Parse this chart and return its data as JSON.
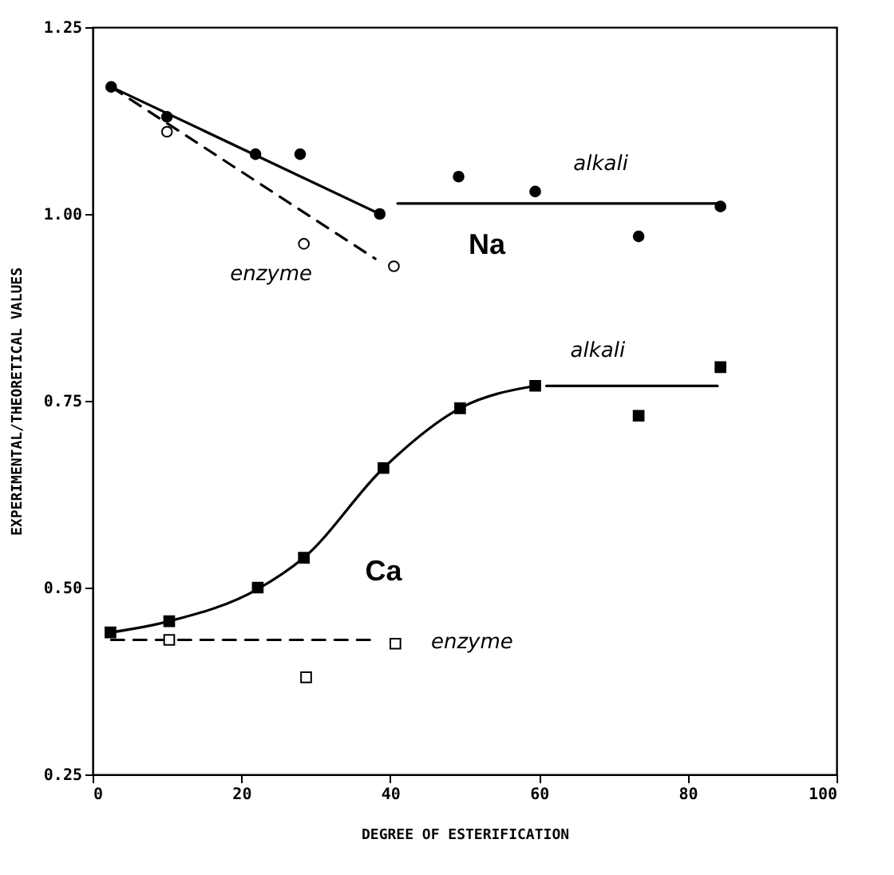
{
  "chart_data": {
    "type": "scatter",
    "xlabel": "DEGREE OF ESTERIFICATION",
    "ylabel": "EXPERIMENTAL/THEORETICAL VALUES",
    "xlim": [
      0,
      100
    ],
    "xticks": [
      0,
      20,
      40,
      60,
      80,
      100
    ],
    "ylim": [
      0.25,
      1.25
    ],
    "yticks": [
      {
        "value": 0.25,
        "label": "0.25"
      },
      {
        "value": 0.5,
        "label": "0.50"
      },
      {
        "value": 0.75,
        "label": "0.75"
      },
      {
        "value": 1.0,
        "label": "1.00"
      },
      {
        "value": 1.25,
        "label": "1.25"
      }
    ],
    "grid": false,
    "series": [
      {
        "type": "line",
        "color": "#000000",
        "line_style": "solid",
        "marker": "none",
        "x": [
          2.5,
          38.6
        ],
        "values": [
          1.17,
          1.0
        ]
      },
      {
        "type": "line",
        "color": "#000000",
        "line_style": "solid",
        "marker": "none",
        "x": [
          41,
          84
        ],
        "values": [
          1.014,
          1.014
        ]
      },
      {
        "type": "line",
        "color": "#000000",
        "line_style": "dashed",
        "marker": "none",
        "x": [
          2.5,
          38
        ],
        "values": [
          1.17,
          0.94
        ]
      },
      {
        "type": "line",
        "color": "#000000",
        "line_style": "solid",
        "marker": "none",
        "x": [
          2.5,
          10.3,
          22.2,
          28.4,
          39.1,
          49.4,
          59.5
        ],
        "values": [
          0.44,
          0.455,
          0.498,
          0.54,
          0.66,
          0.74,
          0.77
        ]
      },
      {
        "type": "line",
        "color": "#000000",
        "line_style": "solid",
        "marker": "none",
        "x": [
          61,
          84
        ],
        "values": [
          0.77,
          0.77
        ]
      },
      {
        "type": "line",
        "color": "#000000",
        "line_style": "dashed",
        "marker": "none",
        "x": [
          2.5,
          38
        ],
        "values": [
          0.43,
          0.43
        ]
      },
      {
        "color": "#000000",
        "marker": "circle",
        "x": [
          2.5,
          10.0,
          21.9,
          27.9,
          38.6,
          49.2,
          59.5,
          73.4,
          84.4
        ],
        "values": [
          1.17,
          1.13,
          1.08,
          1.08,
          1.0,
          1.05,
          1.03,
          0.97,
          1.01
        ]
      },
      {
        "color": "#000000",
        "marker": "circle",
        "x": [
          10.0,
          28.4,
          40.5
        ],
        "values": [
          1.11,
          0.96,
          0.93
        ]
      },
      {
        "color": "#000000",
        "marker": "square",
        "x": [
          2.4,
          10.3,
          22.2,
          28.4,
          39.1,
          49.4,
          59.5,
          73.4,
          84.4
        ],
        "values": [
          0.44,
          0.455,
          0.5,
          0.54,
          0.66,
          0.74,
          0.77,
          0.73,
          0.795
        ]
      },
      {
        "color": "#000000",
        "marker": "square",
        "x": [
          10.3,
          28.7,
          40.7
        ],
        "values": [
          0.43,
          0.38,
          0.425
        ]
      }
    ],
    "annotations": [
      "alkali",
      "enzyme",
      "Na",
      "alkali",
      "Ca",
      "enzyme"
    ]
  }
}
